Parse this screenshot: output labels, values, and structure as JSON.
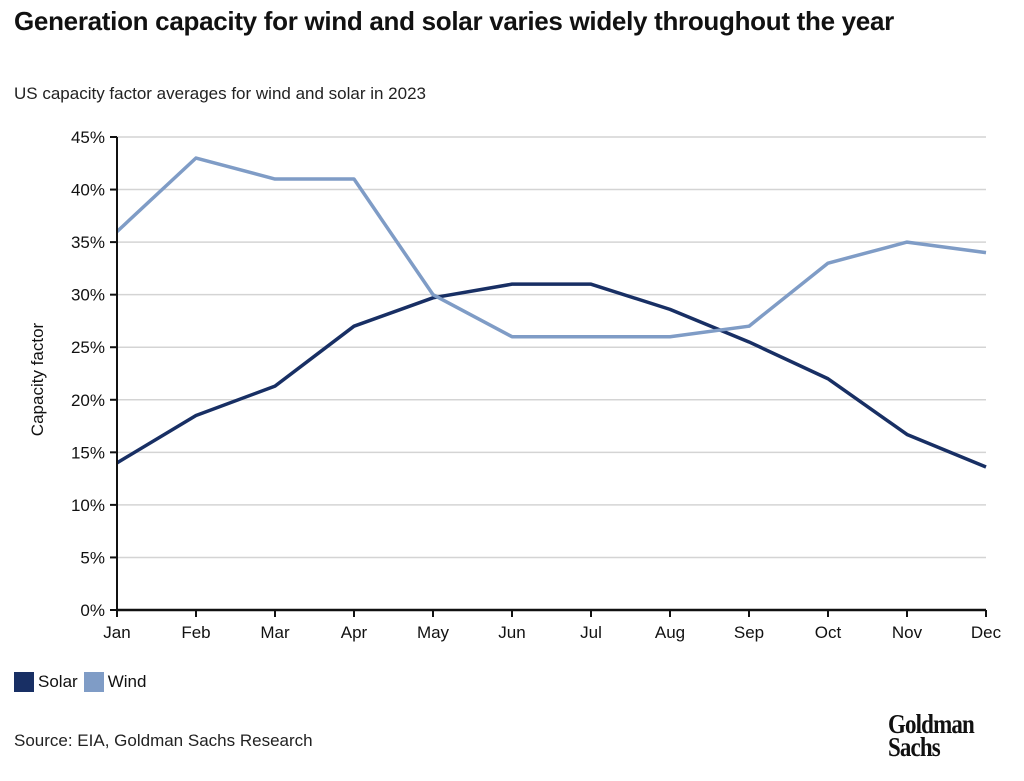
{
  "header": {
    "title": "Generation capacity for wind and solar varies widely throughout the year",
    "subtitle": "US capacity factor averages for wind and solar in 2023"
  },
  "footer": {
    "source": "Source: EIA, Goldman Sachs Research",
    "logo_line1": "Goldman",
    "logo_line2": "Sachs"
  },
  "chart_data": {
    "type": "line",
    "title": "Generation capacity for wind and solar varies widely throughout the year",
    "subtitle": "US capacity factor averages for wind and solar in 2023",
    "xlabel": "",
    "ylabel": "Capacity factor",
    "categories": [
      "Jan",
      "Feb",
      "Mar",
      "Apr",
      "May",
      "Jun",
      "Jul",
      "Aug",
      "Sep",
      "Oct",
      "Nov",
      "Dec"
    ],
    "ylim": [
      0,
      45
    ],
    "yticks": [
      0,
      5,
      10,
      15,
      20,
      25,
      30,
      35,
      40,
      45
    ],
    "ytick_labels": [
      "0%",
      "5%",
      "10%",
      "15%",
      "20%",
      "25%",
      "30%",
      "35%",
      "40%",
      "45%"
    ],
    "grid": true,
    "legend_position": "bottom-left",
    "series": [
      {
        "name": "Solar",
        "color": "#182f64",
        "values": [
          14,
          18.5,
          21.3,
          27,
          29.7,
          31,
          31,
          28.6,
          25.5,
          22,
          16.7,
          13.6
        ]
      },
      {
        "name": "Wind",
        "color": "#7f9cc6",
        "values": [
          36,
          43,
          41,
          41,
          30,
          26,
          26,
          26,
          27,
          33,
          35,
          34
        ]
      }
    ]
  }
}
